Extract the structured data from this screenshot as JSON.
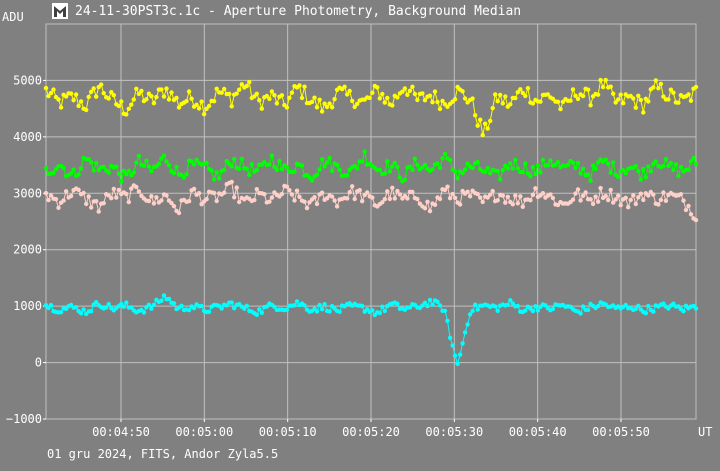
{
  "window": {
    "title": "24-11-30PST3c.1c - Aperture Photometry, Background Median",
    "footer": "01 gru 2024, FITS, Andor Zyla5.5",
    "icon": "app-logo-icon"
  },
  "chart_data": {
    "type": "line",
    "title": "24-11-30PST3c.1c - Aperture Photometry, Background Median",
    "ylabel": "ADU",
    "xlabel": "UT",
    "ylim": [
      -1000,
      6000
    ],
    "xlim": [
      "00:04:41",
      "00:05:59"
    ],
    "y_ticks": [
      -1000,
      0,
      1000,
      2000,
      3000,
      4000,
      5000
    ],
    "y_tick_labels": [
      "−1000",
      "0",
      "1000",
      "2000",
      "3000",
      "4000",
      "5000"
    ],
    "x_ticks": [
      "00:04:50",
      "00:05:00",
      "00:05:10",
      "00:05:20",
      "00:05:30",
      "00:05:40",
      "00:05:50"
    ],
    "grid": true,
    "background": "#808080",
    "grid_color": "#c0c0c0",
    "series": [
      {
        "color": "#ffff00",
        "mean": 4650,
        "spread": 180,
        "values": [
          4820,
          4600,
          4710,
          4550,
          4900,
          4650,
          4480,
          4770,
          4620,
          4850,
          4590,
          4700,
          4530,
          4800,
          4680,
          4950,
          4610,
          4720,
          4560,
          4880,
          4640,
          4500,
          4790,
          4700,
          4600,
          4830,
          4570,
          4920,
          4650,
          4740,
          4590,
          4810,
          4660,
          4020,
          4710,
          4570,
          4860,
          4630,
          4750,
          4490,
          4820,
          4680,
          4940,
          4600,
          4700,
          4560,
          4880,
          4730,
          4620,
          4790
        ]
      },
      {
        "color": "#00ff00",
        "mean": 3450,
        "spread": 150,
        "values": [
          3380,
          3520,
          3300,
          3610,
          3420,
          3470,
          3250,
          3560,
          3390,
          3640,
          3330,
          3500,
          3440,
          3280,
          3590,
          3460,
          3370,
          3620,
          3400,
          3510,
          3310,
          3570,
          3450,
          3360,
          3680,
          3420,
          3490,
          3290,
          3550,
          3400,
          3630,
          3350,
          3480,
          3410,
          3270,
          3540,
          3460,
          3380,
          3600,
          3430,
          3500,
          3320,
          3570,
          3400,
          3470,
          3340,
          3610,
          3450,
          3390,
          3560
        ]
      },
      {
        "color": "#ffd0c8",
        "mean": 2950,
        "spread": 150,
        "values": [
          2980,
          2850,
          3050,
          2900,
          2760,
          3000,
          2920,
          3080,
          2840,
          2960,
          2700,
          3020,
          2890,
          2950,
          3100,
          2810,
          2980,
          2870,
          3040,
          2920,
          2780,
          2990,
          2860,
          3030,
          2940,
          2800,
          3010,
          2880,
          2960,
          2720,
          3050,
          2900,
          2970,
          2830,
          3000,
          2910,
          2850,
          3060,
          2940,
          2790,
          2990,
          2870,
          3020,
          2930,
          2820,
          3000,
          2900,
          2960,
          2880,
          2620
        ]
      },
      {
        "color": "#00ffff",
        "mean": 960,
        "spread": 80,
        "values": [
          1020,
          940,
          980,
          900,
          1050,
          960,
          1010,
          920,
          990,
          1180,
          950,
          1000,
          930,
          980,
          1040,
          960,
          900,
          1010,
          970,
          1060,
          940,
          990,
          920,
          1000,
          960,
          880,
          1030,
          950,
          990,
          1080,
          960,
          -60,
          940,
          1010,
          970,
          1050,
          930,
          990,
          960,
          1020,
          900,
          980,
          1040,
          950,
          1000,
          930,
          970,
          1010,
          950,
          990
        ]
      }
    ]
  }
}
